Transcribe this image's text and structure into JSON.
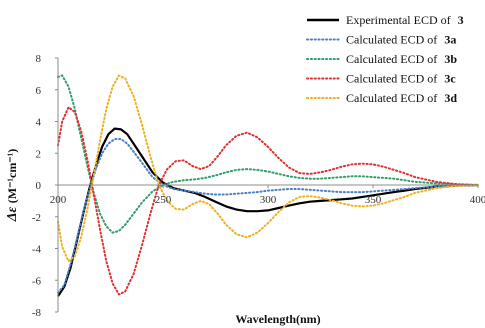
{
  "chart_data": {
    "type": "line",
    "xlabel": "Wavelength(nm)",
    "ylabel_symbol": "Δε",
    "ylabel_units": "(M⁻¹cm⁻¹)",
    "xlim": [
      200,
      400
    ],
    "ylim": [
      -8,
      8
    ],
    "xticks": [
      "200",
      "250",
      "300",
      "350",
      "400"
    ],
    "yticks": [
      "8",
      "6",
      "4",
      "2",
      "0",
      "-2",
      "-4",
      "-6",
      "-8"
    ],
    "grid": false,
    "legend_position": "top-right",
    "series": [
      {
        "name": "Experimental ECD of",
        "compound": "3",
        "color": "#000000",
        "style": "solid",
        "points": [
          [
            200,
            -7.0
          ],
          [
            203,
            -6.4
          ],
          [
            206,
            -5.2
          ],
          [
            209,
            -3.5
          ],
          [
            212,
            -1.8
          ],
          [
            215,
            -0.2
          ],
          [
            218,
            1.2
          ],
          [
            221,
            2.4
          ],
          [
            224,
            3.2
          ],
          [
            227,
            3.55
          ],
          [
            230,
            3.5
          ],
          [
            233,
            3.2
          ],
          [
            236,
            2.6
          ],
          [
            240,
            1.8
          ],
          [
            245,
            0.8
          ],
          [
            250,
            0.15
          ],
          [
            255,
            -0.2
          ],
          [
            260,
            -0.35
          ],
          [
            265,
            -0.5
          ],
          [
            270,
            -0.75
          ],
          [
            275,
            -1.05
          ],
          [
            280,
            -1.35
          ],
          [
            285,
            -1.55
          ],
          [
            290,
            -1.65
          ],
          [
            295,
            -1.65
          ],
          [
            300,
            -1.6
          ],
          [
            305,
            -1.45
          ],
          [
            310,
            -1.3
          ],
          [
            315,
            -1.15
          ],
          [
            320,
            -1.05
          ],
          [
            325,
            -1.0
          ],
          [
            330,
            -0.95
          ],
          [
            335,
            -0.9
          ],
          [
            340,
            -0.85
          ],
          [
            345,
            -0.75
          ],
          [
            350,
            -0.65
          ],
          [
            355,
            -0.55
          ],
          [
            360,
            -0.45
          ],
          [
            365,
            -0.35
          ],
          [
            370,
            -0.25
          ],
          [
            380,
            -0.1
          ],
          [
            390,
            -0.03
          ],
          [
            400,
            0.0
          ]
        ]
      },
      {
        "name": "Calculated ECD of",
        "compound": "3a",
        "color": "#4a7fc4",
        "style": "dotted",
        "points": [
          [
            200,
            -6.8
          ],
          [
            203,
            -6.3
          ],
          [
            206,
            -5.0
          ],
          [
            209,
            -3.4
          ],
          [
            212,
            -1.7
          ],
          [
            215,
            -0.3
          ],
          [
            218,
            1.0
          ],
          [
            221,
            2.0
          ],
          [
            224,
            2.6
          ],
          [
            227,
            2.9
          ],
          [
            230,
            2.9
          ],
          [
            233,
            2.6
          ],
          [
            236,
            2.1
          ],
          [
            240,
            1.4
          ],
          [
            245,
            0.5
          ],
          [
            250,
            0.0
          ],
          [
            255,
            -0.25
          ],
          [
            260,
            -0.35
          ],
          [
            265,
            -0.45
          ],
          [
            270,
            -0.55
          ],
          [
            275,
            -0.6
          ],
          [
            280,
            -0.6
          ],
          [
            285,
            -0.55
          ],
          [
            290,
            -0.5
          ],
          [
            295,
            -0.45
          ],
          [
            300,
            -0.35
          ],
          [
            305,
            -0.3
          ],
          [
            310,
            -0.25
          ],
          [
            315,
            -0.25
          ],
          [
            320,
            -0.3
          ],
          [
            325,
            -0.35
          ],
          [
            330,
            -0.4
          ],
          [
            335,
            -0.45
          ],
          [
            340,
            -0.45
          ],
          [
            345,
            -0.45
          ],
          [
            350,
            -0.4
          ],
          [
            355,
            -0.35
          ],
          [
            360,
            -0.3
          ],
          [
            365,
            -0.25
          ],
          [
            370,
            -0.2
          ],
          [
            380,
            -0.1
          ],
          [
            390,
            -0.03
          ],
          [
            400,
            0.0
          ]
        ]
      },
      {
        "name": "Calculated ECD of",
        "compound": "3b",
        "color": "#2e9e6a",
        "style": "dotted",
        "points": [
          [
            200,
            6.8
          ],
          [
            202,
            6.9
          ],
          [
            205,
            6.2
          ],
          [
            208,
            4.8
          ],
          [
            211,
            3.0
          ],
          [
            214,
            1.2
          ],
          [
            217,
            -0.5
          ],
          [
            220,
            -1.8
          ],
          [
            223,
            -2.6
          ],
          [
            226,
            -3.0
          ],
          [
            229,
            -2.9
          ],
          [
            232,
            -2.5
          ],
          [
            236,
            -1.8
          ],
          [
            240,
            -1.1
          ],
          [
            245,
            -0.4
          ],
          [
            250,
            0.0
          ],
          [
            255,
            0.2
          ],
          [
            260,
            0.3
          ],
          [
            265,
            0.35
          ],
          [
            270,
            0.45
          ],
          [
            275,
            0.6
          ],
          [
            280,
            0.8
          ],
          [
            285,
            0.95
          ],
          [
            290,
            1.0
          ],
          [
            295,
            0.95
          ],
          [
            300,
            0.85
          ],
          [
            305,
            0.7
          ],
          [
            310,
            0.55
          ],
          [
            315,
            0.45
          ],
          [
            320,
            0.4
          ],
          [
            325,
            0.4
          ],
          [
            330,
            0.45
          ],
          [
            335,
            0.5
          ],
          [
            340,
            0.55
          ],
          [
            345,
            0.55
          ],
          [
            350,
            0.5
          ],
          [
            355,
            0.45
          ],
          [
            360,
            0.4
          ],
          [
            365,
            0.3
          ],
          [
            370,
            0.2
          ],
          [
            380,
            0.1
          ],
          [
            390,
            0.03
          ],
          [
            400,
            0.0
          ]
        ]
      },
      {
        "name": "Calculated ECD of",
        "compound": "3c",
        "color": "#e03030",
        "style": "dotted",
        "points": [
          [
            200,
            2.5
          ],
          [
            202,
            4.0
          ],
          [
            205,
            4.9
          ],
          [
            208,
            4.6
          ],
          [
            211,
            3.4
          ],
          [
            214,
            1.6
          ],
          [
            217,
            -0.6
          ],
          [
            220,
            -2.8
          ],
          [
            223,
            -4.8
          ],
          [
            226,
            -6.2
          ],
          [
            229,
            -6.9
          ],
          [
            232,
            -6.7
          ],
          [
            236,
            -5.6
          ],
          [
            240,
            -3.8
          ],
          [
            244,
            -1.8
          ],
          [
            248,
            0.0
          ],
          [
            252,
            1.0
          ],
          [
            256,
            1.5
          ],
          [
            260,
            1.55
          ],
          [
            264,
            1.2
          ],
          [
            268,
            1.0
          ],
          [
            272,
            1.2
          ],
          [
            276,
            1.8
          ],
          [
            280,
            2.5
          ],
          [
            285,
            3.1
          ],
          [
            290,
            3.3
          ],
          [
            295,
            3.0
          ],
          [
            300,
            2.4
          ],
          [
            305,
            1.7
          ],
          [
            310,
            1.1
          ],
          [
            315,
            0.75
          ],
          [
            320,
            0.7
          ],
          [
            325,
            0.8
          ],
          [
            330,
            0.95
          ],
          [
            335,
            1.15
          ],
          [
            340,
            1.3
          ],
          [
            345,
            1.35
          ],
          [
            350,
            1.3
          ],
          [
            355,
            1.15
          ],
          [
            360,
            0.95
          ],
          [
            365,
            0.75
          ],
          [
            370,
            0.5
          ],
          [
            380,
            0.2
          ],
          [
            390,
            0.05
          ],
          [
            400,
            0.0
          ]
        ]
      },
      {
        "name": "Calculated ECD of",
        "compound": "3d",
        "color": "#f0b020",
        "style": "dotted",
        "points": [
          [
            200,
            -2.3
          ],
          [
            202,
            -3.9
          ],
          [
            205,
            -4.8
          ],
          [
            208,
            -4.5
          ],
          [
            211,
            -3.3
          ],
          [
            214,
            -1.5
          ],
          [
            217,
            0.6
          ],
          [
            220,
            2.8
          ],
          [
            223,
            4.8
          ],
          [
            226,
            6.2
          ],
          [
            229,
            6.9
          ],
          [
            232,
            6.7
          ],
          [
            236,
            5.6
          ],
          [
            240,
            3.8
          ],
          [
            244,
            1.8
          ],
          [
            248,
            0.0
          ],
          [
            252,
            -1.0
          ],
          [
            256,
            -1.5
          ],
          [
            260,
            -1.55
          ],
          [
            264,
            -1.2
          ],
          [
            268,
            -1.0
          ],
          [
            272,
            -1.2
          ],
          [
            276,
            -1.8
          ],
          [
            280,
            -2.5
          ],
          [
            285,
            -3.1
          ],
          [
            290,
            -3.3
          ],
          [
            295,
            -3.0
          ],
          [
            300,
            -2.4
          ],
          [
            305,
            -1.7
          ],
          [
            310,
            -1.1
          ],
          [
            315,
            -0.75
          ],
          [
            320,
            -0.7
          ],
          [
            325,
            -0.8
          ],
          [
            330,
            -0.95
          ],
          [
            335,
            -1.15
          ],
          [
            340,
            -1.3
          ],
          [
            345,
            -1.35
          ],
          [
            350,
            -1.3
          ],
          [
            355,
            -1.15
          ],
          [
            360,
            -0.95
          ],
          [
            365,
            -0.75
          ],
          [
            370,
            -0.5
          ],
          [
            380,
            -0.2
          ],
          [
            390,
            -0.05
          ],
          [
            400,
            0.0
          ]
        ]
      }
    ]
  }
}
